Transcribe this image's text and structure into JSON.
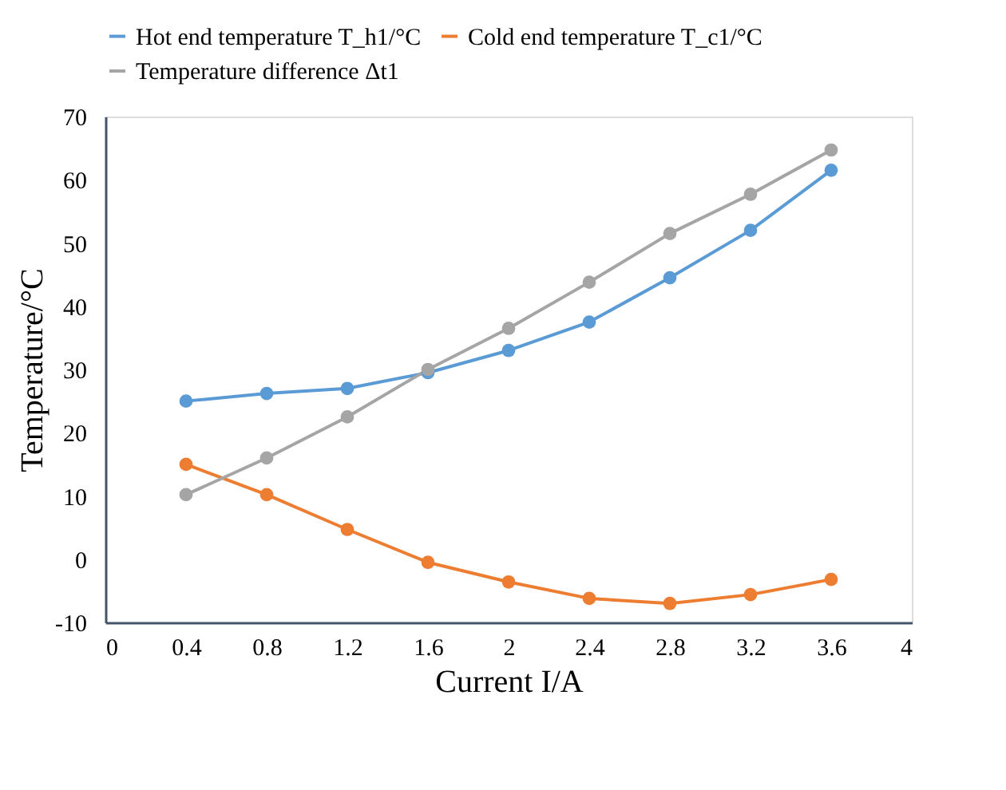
{
  "chart_data": {
    "type": "line",
    "xlabel": "Current I/A",
    "ylabel": "Temperature/°C",
    "x": [
      0.4,
      0.8,
      1.2,
      1.6,
      2,
      2.4,
      2.8,
      3.2,
      3.6
    ],
    "series": [
      {
        "name": "Hot end temperature T_h1/°C",
        "color": "#5b9bd5",
        "values": [
          25,
          26.2,
          27,
          29.5,
          33,
          37.5,
          44.5,
          52,
          61.5
        ]
      },
      {
        "name": "Cold end temperature T_c1/°C",
        "color": "#ed7d31",
        "values": [
          15,
          10.2,
          4.7,
          -0.5,
          -3.6,
          -6.2,
          -7,
          -5.6,
          -3.2
        ]
      },
      {
        "name": "Temperature difference Δt1",
        "color": "#a5a5a5",
        "values": [
          10.2,
          16,
          22.5,
          30,
          36.5,
          43.8,
          51.5,
          57.7,
          64.7
        ]
      }
    ],
    "xlim": [
      0,
      4
    ],
    "xticks": [
      0,
      0.4,
      0.8,
      1.2,
      1.6,
      2,
      2.4,
      2.8,
      3.2,
      3.6,
      4
    ],
    "ylim": [
      -10,
      70
    ],
    "yticks": [
      -10,
      0,
      10,
      20,
      30,
      40,
      50,
      60,
      70
    ],
    "grid": false,
    "legend": "top",
    "marker": "circle",
    "line_style": "solid"
  }
}
